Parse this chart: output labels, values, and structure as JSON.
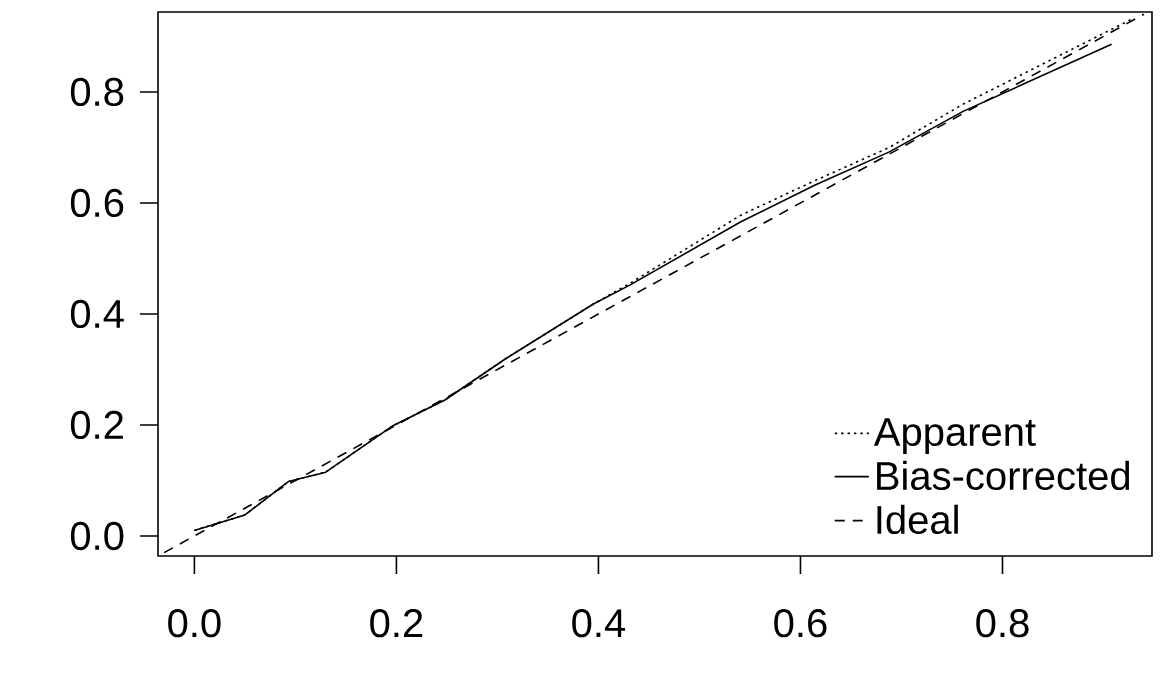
{
  "chart_data": {
    "type": "line",
    "series": [
      {
        "name": "Apparent",
        "color": "#000000",
        "line_style": "dotted",
        "x": [
          0.0,
          0.05,
          0.093,
          0.13,
          0.196,
          0.248,
          0.307,
          0.395,
          0.431,
          0.541,
          0.614,
          0.688,
          0.761,
          0.93
        ],
        "values": [
          0.01,
          0.038,
          0.098,
          0.115,
          0.198,
          0.245,
          0.318,
          0.418,
          0.455,
          0.578,
          0.64,
          0.7,
          0.778,
          0.933
        ]
      },
      {
        "name": "Bias-corrected",
        "color": "#000000",
        "line_style": "solid",
        "x": [
          0.0,
          0.05,
          0.093,
          0.13,
          0.196,
          0.248,
          0.307,
          0.395,
          0.431,
          0.541,
          0.614,
          0.688,
          0.761,
          0.908
        ],
        "values": [
          0.01,
          0.038,
          0.098,
          0.115,
          0.198,
          0.245,
          0.318,
          0.418,
          0.452,
          0.566,
          0.632,
          0.692,
          0.765,
          0.886
        ]
      },
      {
        "name": "Ideal",
        "color": "#000000",
        "line_style": "dashed",
        "x": [
          -0.03,
          0.94
        ],
        "values": [
          -0.03,
          0.94
        ]
      }
    ],
    "xlim": [
      -0.036,
      0.948
    ],
    "ylim": [
      -0.036,
      0.944
    ],
    "xticks": [
      {
        "value": 0,
        "label": "0.0"
      },
      0.2,
      0.4,
      0.6,
      0.8
    ],
    "yticks": [
      {
        "value": 0,
        "label": "0.0"
      },
      0.2,
      0.4,
      0.6,
      0.8
    ],
    "legend": "bottom right",
    "grid": false
  }
}
